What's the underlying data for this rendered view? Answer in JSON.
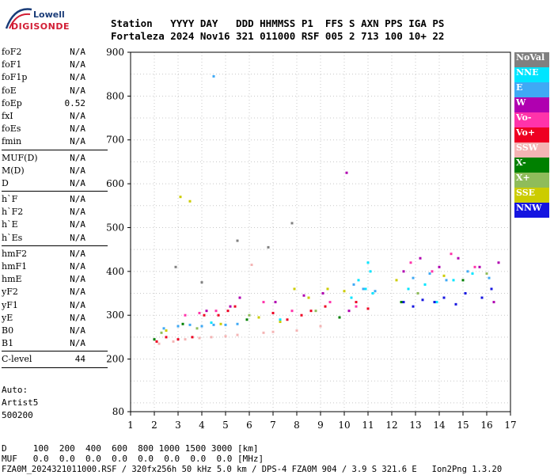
{
  "logo": {
    "line1": "Lowell",
    "line2": "DIGISONDE"
  },
  "header": {
    "labels": "Station   YYYY DAY   DDD HHMMSS P1  FFS S AXN PPS IGA PS",
    "values": "Fortaleza 2024 Nov16 321 011000 RSF 005 2 713 100 10+ 22"
  },
  "params": {
    "group1": [
      {
        "name": "foF2",
        "value": "N/A"
      },
      {
        "name": "foF1",
        "value": "N/A"
      },
      {
        "name": "foF1p",
        "value": "N/A"
      },
      {
        "name": "foE",
        "value": "N/A"
      },
      {
        "name": "foEp",
        "value": "0.52"
      },
      {
        "name": "fxI",
        "value": "N/A"
      },
      {
        "name": "foEs",
        "value": "N/A"
      },
      {
        "name": "fmin",
        "value": "N/A"
      }
    ],
    "group2": [
      {
        "name": "MUF(D)",
        "value": "N/A"
      },
      {
        "name": "M(D)",
        "value": "N/A"
      },
      {
        "name": "D",
        "value": "N/A"
      }
    ],
    "group3": [
      {
        "name": "h`F",
        "value": "N/A"
      },
      {
        "name": "h`F2",
        "value": "N/A"
      },
      {
        "name": "h`E",
        "value": "N/A"
      },
      {
        "name": "h`Es",
        "value": "N/A"
      }
    ],
    "group4": [
      {
        "name": "hmF2",
        "value": "N/A"
      },
      {
        "name": "hmF1",
        "value": "N/A"
      },
      {
        "name": "hmE",
        "value": "N/A"
      },
      {
        "name": "yF2",
        "value": "N/A"
      },
      {
        "name": "yF1",
        "value": "N/A"
      },
      {
        "name": "yE",
        "value": "N/A"
      },
      {
        "name": "B0",
        "value": "N/A"
      },
      {
        "name": "B1",
        "value": "N/A"
      }
    ],
    "group5": [
      {
        "name": "C-level",
        "value": "44"
      }
    ]
  },
  "auto": {
    "line1": "Auto:",
    "line2": "Artist5",
    "line3": "500200"
  },
  "legend": [
    {
      "label": "NoVal",
      "color": "#808080"
    },
    {
      "label": "NNE",
      "color": "#00e5ff"
    },
    {
      "label": "E",
      "color": "#3fa9f5"
    },
    {
      "label": "W",
      "color": "#b000b0"
    },
    {
      "label": "Vo-",
      "color": "#ff33aa"
    },
    {
      "label": "Vo+",
      "color": "#ee0022"
    },
    {
      "label": "SSW",
      "color": "#f4b4b4"
    },
    {
      "label": "X-",
      "color": "#008000"
    },
    {
      "label": "X+",
      "color": "#8fbc5a"
    },
    {
      "label": "SSE",
      "color": "#cccc00"
    },
    {
      "label": "NNW",
      "color": "#1515e0"
    }
  ],
  "chart_data": {
    "type": "scatter",
    "xlabel": "",
    "ylabel": "",
    "xlim": [
      1,
      17
    ],
    "ylim": [
      80,
      900
    ],
    "xticks": [
      "1",
      "2",
      "3",
      "4",
      "5",
      "6",
      "7",
      "8",
      "9",
      "10",
      "11",
      "12",
      "13",
      "14",
      "15",
      "16",
      "17"
    ],
    "yticks": [
      "80",
      "200",
      "300",
      "400",
      "500",
      "600",
      "700",
      "800",
      "900"
    ],
    "series": [
      {
        "name": "NNE",
        "color": "#00e5ff",
        "points": [
          [
            10.3,
            340
          ],
          [
            10.6,
            380
          ],
          [
            10.9,
            360
          ],
          [
            11.1,
            400
          ],
          [
            11.2,
            350
          ],
          [
            12.7,
            360
          ],
          [
            13.4,
            370
          ],
          [
            13.9,
            330
          ],
          [
            14.6,
            380
          ],
          [
            15.4,
            395
          ],
          [
            7.3,
            290
          ],
          [
            11.0,
            420
          ],
          [
            4.4,
            283
          ]
        ]
      },
      {
        "name": "E",
        "color": "#3fa9f5",
        "points": [
          [
            2.4,
            270
          ],
          [
            3.0,
            275
          ],
          [
            3.5,
            278
          ],
          [
            4.0,
            275
          ],
          [
            4.5,
            278
          ],
          [
            5.0,
            278
          ],
          [
            5.5,
            280
          ],
          [
            10.4,
            370
          ],
          [
            10.8,
            360
          ],
          [
            11.3,
            355
          ],
          [
            12.9,
            385
          ],
          [
            13.6,
            395
          ],
          [
            14.3,
            380
          ],
          [
            15.2,
            400
          ],
          [
            16.1,
            385
          ],
          [
            4.5,
            845
          ]
        ]
      },
      {
        "name": "W",
        "color": "#b000b0",
        "points": [
          [
            4.2,
            310
          ],
          [
            5.2,
            320
          ],
          [
            5.6,
            340
          ],
          [
            7.1,
            330
          ],
          [
            8.3,
            345
          ],
          [
            9.1,
            350
          ],
          [
            10.2,
            310
          ],
          [
            10.1,
            625
          ],
          [
            12.5,
            400
          ],
          [
            13.2,
            430
          ],
          [
            14.0,
            410
          ],
          [
            14.8,
            430
          ],
          [
            15.7,
            410
          ],
          [
            16.3,
            330
          ],
          [
            16.5,
            420
          ]
        ]
      },
      {
        "name": "Vo-",
        "color": "#ff33aa",
        "points": [
          [
            3.3,
            300
          ],
          [
            3.9,
            305
          ],
          [
            4.6,
            310
          ],
          [
            6.6,
            330
          ],
          [
            7.8,
            310
          ],
          [
            9.4,
            330
          ],
          [
            10.5,
            320
          ],
          [
            12.8,
            420
          ],
          [
            13.7,
            400
          ],
          [
            14.5,
            440
          ],
          [
            15.5,
            410
          ]
        ]
      },
      {
        "name": "Vo+",
        "color": "#ee0022",
        "points": [
          [
            2.1,
            240
          ],
          [
            2.5,
            250
          ],
          [
            3.0,
            245
          ],
          [
            3.6,
            250
          ],
          [
            4.1,
            300
          ],
          [
            4.7,
            300
          ],
          [
            5.1,
            310
          ],
          [
            5.4,
            320
          ],
          [
            7.0,
            305
          ],
          [
            7.6,
            290
          ],
          [
            8.2,
            300
          ],
          [
            8.6,
            310
          ],
          [
            9.2,
            320
          ],
          [
            10.5,
            330
          ],
          [
            11.0,
            315
          ]
        ]
      },
      {
        "name": "SSW",
        "color": "#f4b4b4",
        "points": [
          [
            2.2,
            235
          ],
          [
            2.8,
            240
          ],
          [
            3.3,
            245
          ],
          [
            3.9,
            248
          ],
          [
            4.4,
            250
          ],
          [
            5.0,
            252
          ],
          [
            5.5,
            255
          ],
          [
            6.6,
            260
          ],
          [
            7.0,
            262
          ],
          [
            8.0,
            265
          ],
          [
            9.0,
            275
          ],
          [
            6.1,
            415
          ]
        ]
      },
      {
        "name": "X-",
        "color": "#008000",
        "points": [
          [
            2.0,
            245
          ],
          [
            3.2,
            280
          ],
          [
            5.9,
            290
          ],
          [
            9.8,
            295
          ],
          [
            12.4,
            330
          ],
          [
            15.0,
            380
          ]
        ]
      },
      {
        "name": "X+",
        "color": "#8fbc5a",
        "points": [
          [
            2.3,
            260
          ],
          [
            3.8,
            270
          ],
          [
            6.0,
            300
          ],
          [
            8.8,
            310
          ],
          [
            13.1,
            350
          ],
          [
            16.0,
            395
          ]
        ]
      },
      {
        "name": "SSE",
        "color": "#cccc00",
        "points": [
          [
            2.5,
            265
          ],
          [
            3.1,
            570
          ],
          [
            3.5,
            560
          ],
          [
            4.8,
            280
          ],
          [
            6.4,
            295
          ],
          [
            7.3,
            285
          ],
          [
            7.9,
            360
          ],
          [
            8.5,
            340
          ],
          [
            9.3,
            360
          ],
          [
            10.0,
            355
          ],
          [
            12.2,
            380
          ],
          [
            14.2,
            390
          ]
        ]
      },
      {
        "name": "NNW",
        "color": "#1515e0",
        "points": [
          [
            12.5,
            330
          ],
          [
            12.9,
            320
          ],
          [
            13.3,
            335
          ],
          [
            13.8,
            330
          ],
          [
            14.2,
            340
          ],
          [
            14.7,
            325
          ],
          [
            15.1,
            350
          ],
          [
            15.8,
            340
          ],
          [
            16.2,
            360
          ]
        ]
      },
      {
        "name": "NoVal",
        "color": "#808080",
        "points": [
          [
            2.9,
            410
          ],
          [
            4.0,
            375
          ],
          [
            5.5,
            470
          ],
          [
            6.8,
            455
          ],
          [
            7.8,
            510
          ]
        ]
      }
    ],
    "legend_position": "right"
  },
  "bottom": {
    "d_row": "D     100  200  400  600  800 1000 1500 3000 [km]",
    "muf_row": "MUF   0.0  0.0  0.0  0.0  0.0  0.0  0.0  0.0 [MHz]",
    "footer": "FZA0M_2024321011000.RSF / 320fx256h 50 kHz 5.0 km / DPS-4 FZA0M 904 / 3.9 S 321.6 E   Ion2Png 1.3.20"
  }
}
